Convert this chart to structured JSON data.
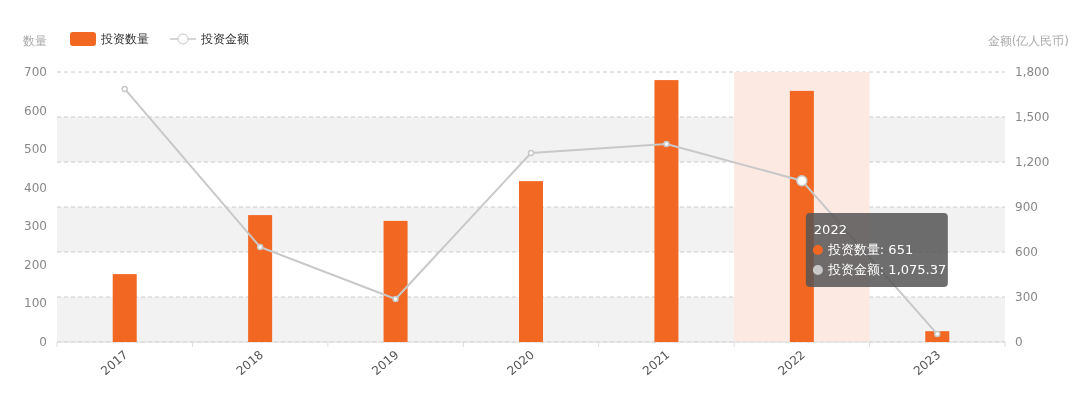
{
  "chart_data": {
    "type": "bar",
    "categories": [
      "2017",
      "2018",
      "2019",
      "2020",
      "2021",
      "2022",
      "2023"
    ],
    "series": [
      {
        "name": "投资数量",
        "color": "#f26722",
        "values": [
          176,
          329,
          314,
          417,
          679,
          651,
          28
        ]
      },
      {
        "name": "投资金额",
        "type": "line",
        "axis": "y2",
        "color": "#c8c8c8",
        "values": [
          1687,
          633,
          287,
          1260,
          1320,
          1075.37,
          53
        ]
      }
    ],
    "ylabel": "数量",
    "y2label": "金额(亿人民币)",
    "ylim": [
      0,
      700
    ],
    "yticks": [
      0,
      100,
      200,
      300,
      400,
      500,
      600,
      700
    ],
    "y2lim": [
      0,
      1800
    ],
    "y2ticks": [
      {
        "value": 0,
        "label": "0"
      },
      {
        "value": 300,
        "label": "300"
      },
      {
        "value": 600,
        "label": "600"
      },
      {
        "value": 900,
        "label": "900"
      },
      {
        "value": 1200,
        "label": "1,200"
      },
      {
        "value": 1500,
        "label": "1,500"
      },
      {
        "value": 1800,
        "label": "1,800"
      }
    ],
    "bands": [
      {
        "axis": "x",
        "from": "2022",
        "to": "2022",
        "color": "#fce9e2"
      }
    ],
    "annotations": [
      "2022",
      "投资数量: 651",
      "投资金额: 1,075.37"
    ],
    "grid": "y2",
    "legend": "top left",
    "marker": "circle",
    "line_style": "solid"
  }
}
